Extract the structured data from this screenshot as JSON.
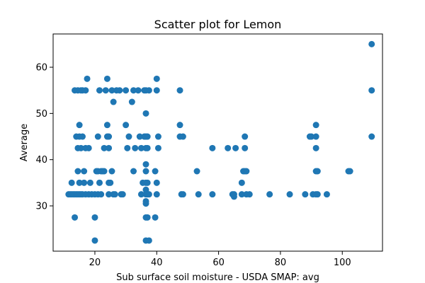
{
  "chart_data": {
    "type": "scatter",
    "title": "Scatter plot for Lemon",
    "xlabel": "Sub surface soil moisture - USDA SMAP: avg",
    "ylabel": "Average",
    "xlim": [
      6.5,
      113
    ],
    "ylim": [
      20.2,
      67.2
    ],
    "xticks": [
      20,
      40,
      60,
      80,
      100
    ],
    "yticks": [
      30,
      40,
      50,
      60
    ],
    "grid": false,
    "marker_color": "#1f77b4",
    "points": [
      [
        11.5,
        32.5
      ],
      [
        12,
        32.5
      ],
      [
        12.5,
        32.5
      ],
      [
        13,
        32.5
      ],
      [
        13.5,
        32.5
      ],
      [
        14,
        32.5
      ],
      [
        14.5,
        32.5
      ],
      [
        15,
        32.5
      ],
      [
        15.5,
        32.5
      ],
      [
        16,
        32.5
      ],
      [
        17,
        32.5
      ],
      [
        18,
        32.5
      ],
      [
        19,
        32.5
      ],
      [
        20,
        32.5
      ],
      [
        21,
        32.5
      ],
      [
        22,
        32.5
      ],
      [
        12.5,
        35
      ],
      [
        13.5,
        27.5
      ],
      [
        13.5,
        55
      ],
      [
        14,
        45
      ],
      [
        15,
        45
      ],
      [
        16,
        45
      ],
      [
        14.5,
        42.5
      ],
      [
        15.5,
        42.5
      ],
      [
        17,
        42.5
      ],
      [
        18,
        42.5
      ],
      [
        15,
        47.5
      ],
      [
        14.5,
        55
      ],
      [
        15.5,
        55
      ],
      [
        16,
        55
      ],
      [
        17,
        55
      ],
      [
        14.5,
        37.5
      ],
      [
        16.5,
        37.5
      ],
      [
        15,
        35
      ],
      [
        16.5,
        35
      ],
      [
        17.5,
        57.5
      ],
      [
        18.5,
        35
      ],
      [
        20,
        22.5
      ],
      [
        20,
        27.5
      ],
      [
        20.5,
        37.5
      ],
      [
        21,
        37.5
      ],
      [
        21.5,
        35
      ],
      [
        21,
        45
      ],
      [
        21.5,
        55
      ],
      [
        22,
        37.5
      ],
      [
        22.5,
        37.5
      ],
      [
        23,
        37.5
      ],
      [
        23,
        42.5
      ],
      [
        23.5,
        55
      ],
      [
        24,
        57.5
      ],
      [
        24,
        47.5
      ],
      [
        24,
        45
      ],
      [
        24.5,
        45
      ],
      [
        24.5,
        42.5
      ],
      [
        24.5,
        35
      ],
      [
        24.5,
        32.5
      ],
      [
        25,
        35
      ],
      [
        25.5,
        55
      ],
      [
        25.5,
        37.5
      ],
      [
        26,
        52.5
      ],
      [
        26,
        32.5
      ],
      [
        26.5,
        32.5
      ],
      [
        27,
        55
      ],
      [
        28,
        55
      ],
      [
        28.5,
        32.5
      ],
      [
        29,
        32.5
      ],
      [
        30,
        55
      ],
      [
        30,
        47.5
      ],
      [
        30.5,
        42.5
      ],
      [
        31,
        45
      ],
      [
        32,
        52.5
      ],
      [
        32.5,
        55
      ],
      [
        32.5,
        37.5
      ],
      [
        33,
        42.5
      ],
      [
        34,
        55
      ],
      [
        34.5,
        45
      ],
      [
        35,
        32.5
      ],
      [
        35,
        42.5
      ],
      [
        35.5,
        35
      ],
      [
        36,
        45
      ],
      [
        36,
        55
      ],
      [
        36.5,
        22.5
      ],
      [
        36.5,
        27.5
      ],
      [
        36.5,
        30.5
      ],
      [
        36.5,
        31
      ],
      [
        36.5,
        32.5
      ],
      [
        36.5,
        33.5
      ],
      [
        36.5,
        35
      ],
      [
        36.5,
        37.5
      ],
      [
        36.5,
        39
      ],
      [
        36.5,
        42.5
      ],
      [
        36.5,
        45
      ],
      [
        36.5,
        50
      ],
      [
        36.5,
        55
      ],
      [
        37,
        42.5
      ],
      [
        37,
        45
      ],
      [
        37,
        27.5
      ],
      [
        37,
        32.5
      ],
      [
        37,
        35
      ],
      [
        37.5,
        22.5
      ],
      [
        37.5,
        32.5
      ],
      [
        37.5,
        55
      ],
      [
        39.5,
        37.5
      ],
      [
        39.5,
        27.5
      ],
      [
        40,
        57.5
      ],
      [
        40,
        55
      ],
      [
        40,
        32.5
      ],
      [
        40.5,
        45
      ],
      [
        40.5,
        42.5
      ],
      [
        40,
        35
      ],
      [
        47.5,
        55
      ],
      [
        47.5,
        47.5
      ],
      [
        47.5,
        45
      ],
      [
        48,
        32.5
      ],
      [
        48.5,
        45
      ],
      [
        48.5,
        32.5
      ],
      [
        53,
        37.5
      ],
      [
        53.5,
        32.5
      ],
      [
        58,
        32.5
      ],
      [
        58,
        42.5
      ],
      [
        63,
        42.5
      ],
      [
        64.5,
        32.5
      ],
      [
        65,
        32
      ],
      [
        65,
        32.5
      ],
      [
        65.5,
        42.5
      ],
      [
        67.5,
        35
      ],
      [
        67.5,
        32.5
      ],
      [
        68,
        37.5
      ],
      [
        68.5,
        37.5
      ],
      [
        68.5,
        42.5
      ],
      [
        68.5,
        45
      ],
      [
        69,
        37.5
      ],
      [
        69,
        32.5
      ],
      [
        70,
        32.5
      ],
      [
        76.5,
        32.5
      ],
      [
        83,
        32.5
      ],
      [
        88,
        32.5
      ],
      [
        89.5,
        45
      ],
      [
        90,
        45
      ],
      [
        90.5,
        32.5
      ],
      [
        91.5,
        45
      ],
      [
        91.5,
        47.5
      ],
      [
        91.5,
        42.5
      ],
      [
        91.5,
        37.5
      ],
      [
        92,
        37.5
      ],
      [
        91.5,
        32.5
      ],
      [
        92,
        32.5
      ],
      [
        95,
        32.5
      ],
      [
        102,
        37.5
      ],
      [
        102.5,
        37.5
      ],
      [
        109.5,
        65
      ],
      [
        109.5,
        55
      ],
      [
        109.5,
        45
      ]
    ]
  }
}
